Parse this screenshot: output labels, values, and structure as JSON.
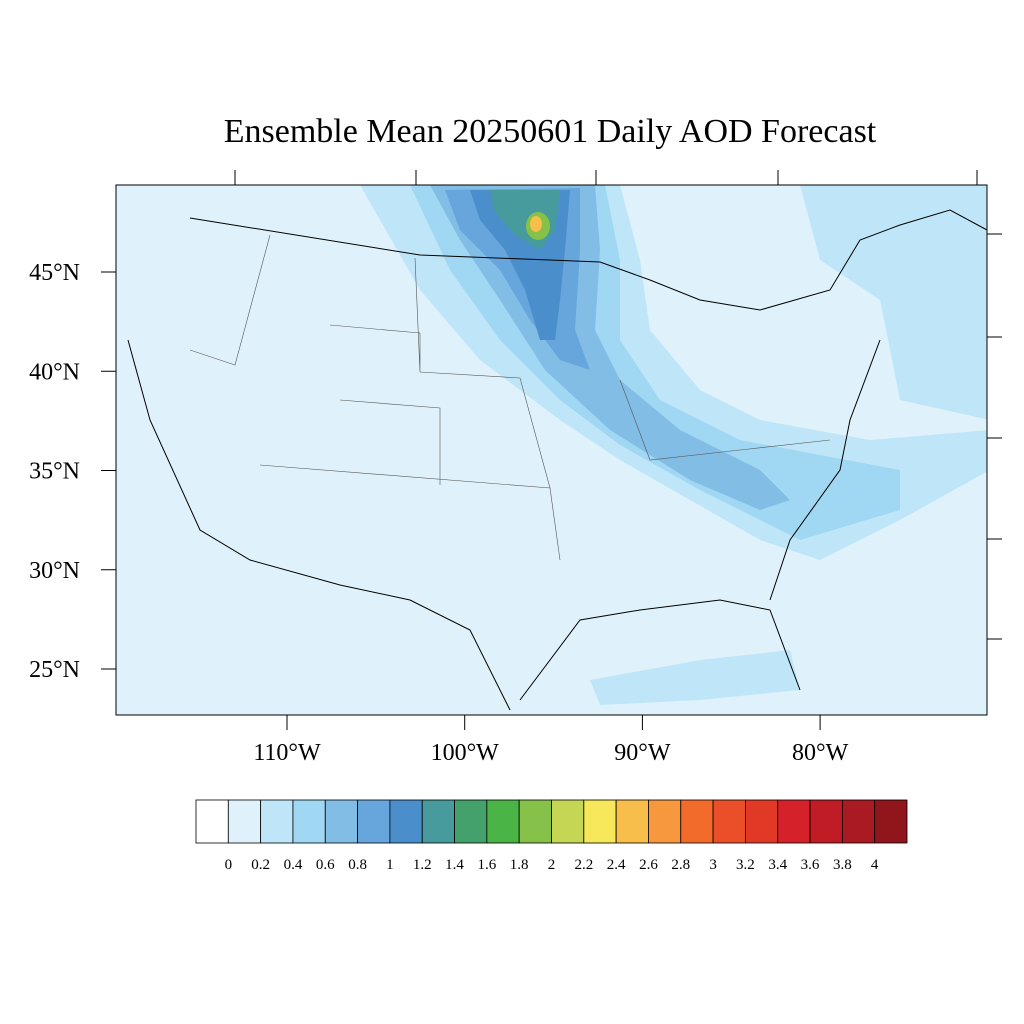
{
  "map": {
    "title": "Ensemble Mean 20250601 Daily AOD Forecast",
    "lat_ticks": [
      {
        "value": 45,
        "label": "45°N"
      },
      {
        "value": 40,
        "label": "40°N"
      },
      {
        "value": 35,
        "label": "35°N"
      },
      {
        "value": 30,
        "label": "30°N"
      },
      {
        "value": 25,
        "label": "25°N"
      }
    ],
    "lon_ticks": [
      {
        "value": -110,
        "label": "110°W"
      },
      {
        "value": -100,
        "label": "100°W"
      },
      {
        "value": -90,
        "label": "90°W"
      },
      {
        "value": -80,
        "label": "80°W"
      }
    ],
    "colorbar": {
      "levels": [
        0,
        0.2,
        0.4,
        0.6,
        0.8,
        1,
        1.2,
        1.4,
        1.6,
        1.8,
        2,
        2.2,
        2.4,
        2.6,
        2.8,
        3,
        3.2,
        3.4,
        3.6,
        3.8,
        4
      ],
      "colors": [
        "#ffffff",
        "#dff2fb",
        "#bfe6f8",
        "#a0d7f3",
        "#82bde6",
        "#66a6dc",
        "#4a8ecb",
        "#479b9c",
        "#45a16c",
        "#4ab546",
        "#86c24a",
        "#c5d654",
        "#f7e75a",
        "#f8be4a",
        "#f7983f",
        "#f26b2a",
        "#ea4f29",
        "#e03a27",
        "#d52129",
        "#bf1c26",
        "#a91a22",
        "#91161c"
      ]
    }
  }
}
